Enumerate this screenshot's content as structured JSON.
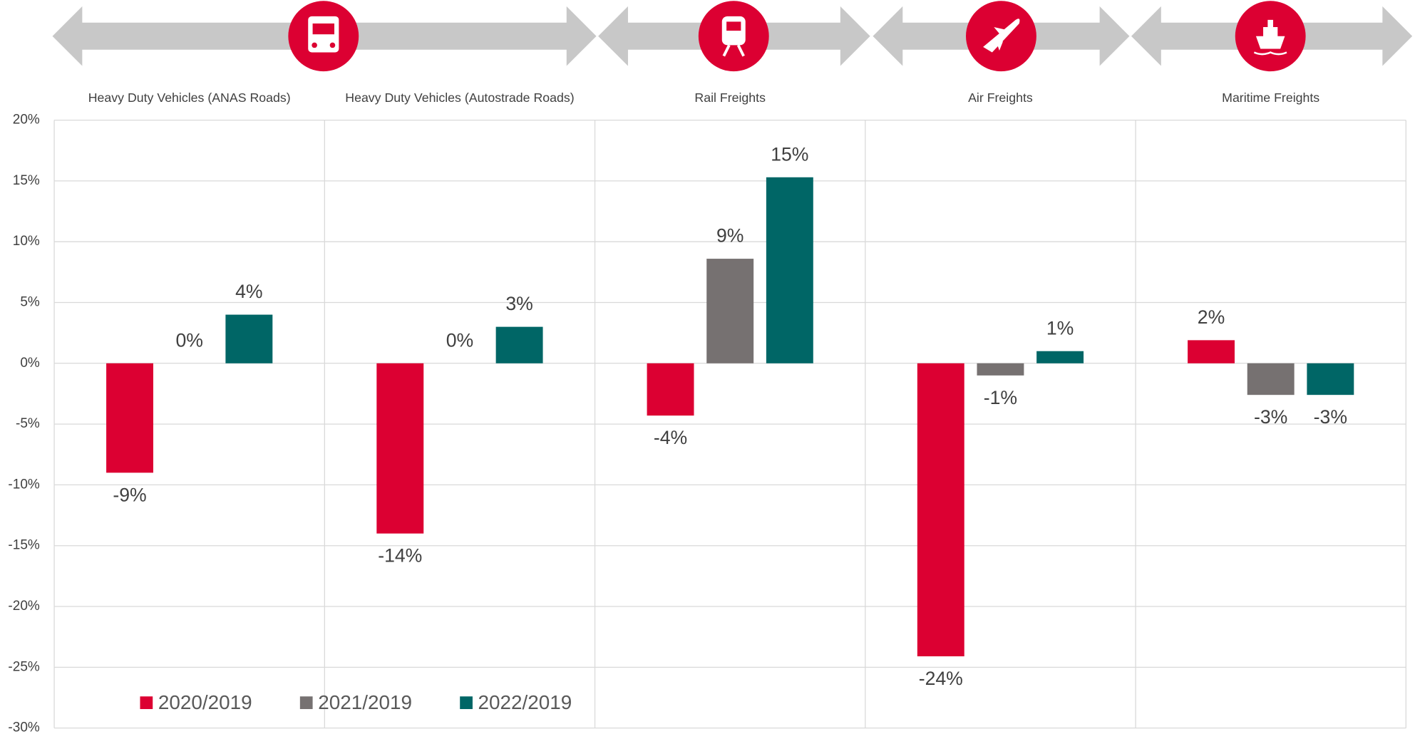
{
  "chart_data": {
    "type": "bar",
    "categories": [
      "Heavy Duty Vehicles (ANAS Roads)",
      "Heavy Duty Vehicles (Autostrade Roads)",
      "Rail Freights",
      "Air Freights",
      "Maritime Freights"
    ],
    "series": [
      {
        "name": "2020/2019",
        "color": "#dc0032",
        "values": [
          -9,
          -14,
          -4.3,
          -24.1,
          1.9
        ],
        "value_labels": [
          "-9%",
          "-14%",
          "-4%",
          "-24%",
          "2%"
        ]
      },
      {
        "name": "2021/2019",
        "color": "#767171",
        "values": [
          0,
          0,
          8.6,
          -1.0,
          -2.6
        ],
        "value_labels": [
          "0%",
          "0%",
          "9%",
          "-1%",
          "-3%"
        ]
      },
      {
        "name": "2022/2019",
        "color": "#006666",
        "values": [
          4.0,
          3.0,
          15.3,
          1.0,
          -2.6
        ],
        "value_labels": [
          "4%",
          "3%",
          "15%",
          "1%",
          "-3%"
        ]
      }
    ],
    "ylim": [
      -30,
      20
    ],
    "yticks": [
      {
        "value": 20,
        "label": "20%"
      },
      {
        "value": 15,
        "label": "15%"
      },
      {
        "value": 10,
        "label": "10%"
      },
      {
        "value": 5,
        "label": "5%"
      },
      {
        "value": 0,
        "label": "0%"
      },
      {
        "value": -5,
        "label": "-5%"
      },
      {
        "value": -10,
        "label": "-10%"
      },
      {
        "value": -15,
        "label": "-15%"
      },
      {
        "value": -20,
        "label": "-20%"
      },
      {
        "value": -25,
        "label": "-25%"
      },
      {
        "value": -30,
        "label": "-30%"
      }
    ],
    "grid": true,
    "legend": "lower left"
  }
}
